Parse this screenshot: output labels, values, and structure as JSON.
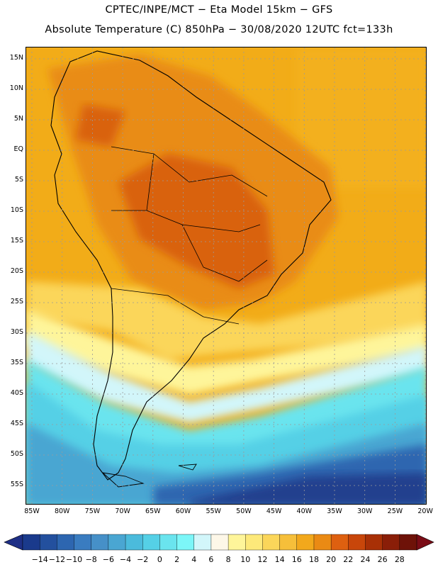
{
  "header": {
    "line1": "CPTEC/INPE/MCT  −   Eta Model 15km  −  GFS",
    "line2": "Absolute Temperature (C) 850hPa − 30/08/2020 12UTC fct=133h"
  },
  "map": {
    "lat_labels": [
      "15N",
      "10N",
      "5N",
      "EQ",
      "5S",
      "10S",
      "15S",
      "20S",
      "25S",
      "30S",
      "35S",
      "40S",
      "45S",
      "50S",
      "55S"
    ],
    "lon_labels": [
      "85W",
      "80W",
      "75W",
      "70W",
      "65W",
      "60W",
      "55W",
      "50W",
      "45W",
      "40W",
      "35W",
      "30W",
      "25W",
      "20W"
    ]
  },
  "colorbar": {
    "labels": [
      "−14",
      "−12",
      "−10",
      "−8",
      "−6",
      "−4",
      "−2",
      "0",
      "2",
      "4",
      "6",
      "8",
      "10",
      "12",
      "14",
      "16",
      "18",
      "20",
      "22",
      "24",
      "26",
      "28"
    ],
    "colors": [
      "#1a3a8c",
      "#23509e",
      "#2d66b0",
      "#3a7cc0",
      "#4690c8",
      "#4aa6d2",
      "#4bbbdc",
      "#55d0e6",
      "#6ae4ee",
      "#7cf6f8",
      "#d2f6fa",
      "#fdf7e8",
      "#fef59a",
      "#fde97a",
      "#fbd65a",
      "#f6bf3a",
      "#f2a81c",
      "#ea8a14",
      "#de6010",
      "#c8460a",
      "#a83006",
      "#8a1e08",
      "#6e1208"
    ],
    "low_color": "#1e2f86",
    "high_color": "#7a0c16"
  },
  "colors": {
    "ocean_north": "#f2ac18",
    "land_hot": "#d9620e",
    "land_warm": "#e98c16",
    "south_cold": "#22418e"
  }
}
